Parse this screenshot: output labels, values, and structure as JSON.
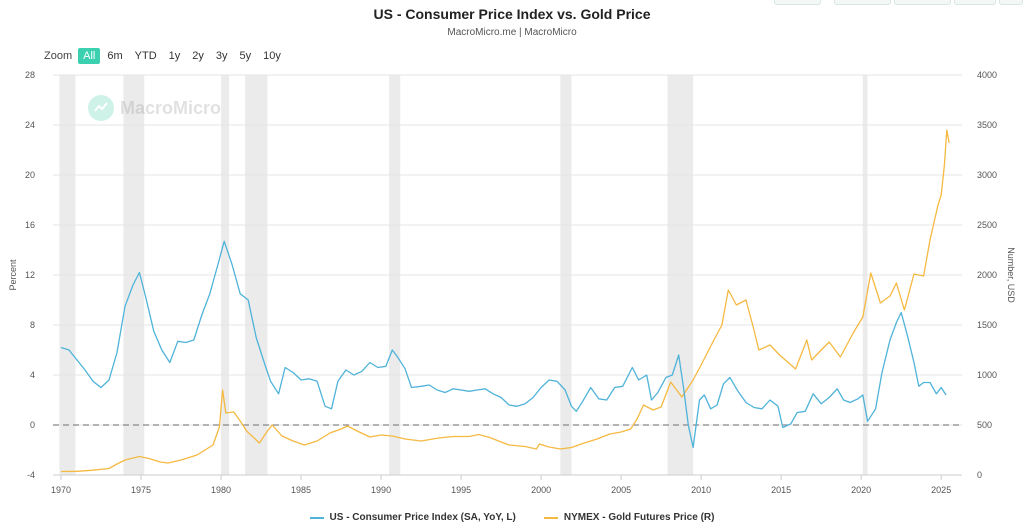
{
  "page": {
    "title": "US - Consumer Price Index vs. Gold Price",
    "subtitle": "MacroMicro.me | MacroMicro",
    "watermark": "MacroMicro"
  },
  "zoom": {
    "label": "Zoom",
    "options": [
      "All",
      "6m",
      "YTD",
      "1y",
      "2y",
      "3y",
      "5y",
      "10y"
    ],
    "selected": "All"
  },
  "chart_data": {
    "type": "line",
    "title": "US - Consumer Price Index vs. Gold Price",
    "xlim": [
      1969.5,
      2026.3
    ],
    "x_ticks": [
      1970,
      1975,
      1980,
      1985,
      1990,
      1995,
      2000,
      2005,
      2010,
      2015,
      2020,
      2025
    ],
    "y_left": {
      "label": "Percent",
      "min": -4,
      "max": 28,
      "ticks": [
        -4,
        0,
        4,
        8,
        12,
        16,
        20,
        24,
        28
      ]
    },
    "y_right": {
      "label": "Number, USD",
      "min": 0,
      "max": 4000,
      "ticks": [
        0,
        500,
        1000,
        1500,
        2000,
        2500,
        3000,
        3500,
        4000
      ]
    },
    "zero_line": 0,
    "recessions": [
      [
        1969.9,
        1970.9
      ],
      [
        1973.9,
        1975.2
      ],
      [
        1980.0,
        1980.5
      ],
      [
        1981.5,
        1982.9
      ],
      [
        1990.5,
        1991.2
      ],
      [
        2001.2,
        2001.9
      ],
      [
        2007.9,
        2009.5
      ],
      [
        2020.1,
        2020.4
      ]
    ],
    "series": [
      {
        "name": "US - Consumer Price Index (SA, YoY, L)",
        "axis": "left",
        "color": "#4fb3d9",
        "points": [
          [
            1970.0,
            6.2
          ],
          [
            1970.5,
            6.0
          ],
          [
            1971.0,
            5.2
          ],
          [
            1971.5,
            4.4
          ],
          [
            1972.0,
            3.5
          ],
          [
            1972.5,
            3.0
          ],
          [
            1973.0,
            3.6
          ],
          [
            1973.5,
            5.8
          ],
          [
            1974.0,
            9.5
          ],
          [
            1974.5,
            11.2
          ],
          [
            1974.9,
            12.2
          ],
          [
            1975.3,
            10.2
          ],
          [
            1975.8,
            7.5
          ],
          [
            1976.3,
            6.0
          ],
          [
            1976.8,
            5.0
          ],
          [
            1977.3,
            6.7
          ],
          [
            1977.8,
            6.6
          ],
          [
            1978.3,
            6.8
          ],
          [
            1978.8,
            8.8
          ],
          [
            1979.3,
            10.5
          ],
          [
            1979.8,
            12.8
          ],
          [
            1980.2,
            14.7
          ],
          [
            1980.7,
            12.8
          ],
          [
            1981.2,
            10.5
          ],
          [
            1981.7,
            10.0
          ],
          [
            1982.2,
            7.0
          ],
          [
            1982.7,
            5.0
          ],
          [
            1983.1,
            3.5
          ],
          [
            1983.6,
            2.5
          ],
          [
            1984.0,
            4.6
          ],
          [
            1984.5,
            4.2
          ],
          [
            1985.0,
            3.6
          ],
          [
            1985.5,
            3.7
          ],
          [
            1986.0,
            3.5
          ],
          [
            1986.5,
            1.5
          ],
          [
            1986.9,
            1.3
          ],
          [
            1987.3,
            3.5
          ],
          [
            1987.8,
            4.4
          ],
          [
            1988.3,
            4.0
          ],
          [
            1988.8,
            4.3
          ],
          [
            1989.3,
            5.0
          ],
          [
            1989.8,
            4.6
          ],
          [
            1990.3,
            4.7
          ],
          [
            1990.7,
            6.0
          ],
          [
            1991.0,
            5.5
          ],
          [
            1991.5,
            4.5
          ],
          [
            1991.9,
            3.0
          ],
          [
            1992.5,
            3.1
          ],
          [
            1993.0,
            3.2
          ],
          [
            1993.5,
            2.8
          ],
          [
            1994.0,
            2.6
          ],
          [
            1994.5,
            2.9
          ],
          [
            1995.0,
            2.8
          ],
          [
            1995.5,
            2.7
          ],
          [
            1996.0,
            2.8
          ],
          [
            1996.5,
            2.9
          ],
          [
            1997.0,
            2.5
          ],
          [
            1997.5,
            2.2
          ],
          [
            1998.0,
            1.6
          ],
          [
            1998.5,
            1.5
          ],
          [
            1999.0,
            1.7
          ],
          [
            1999.5,
            2.2
          ],
          [
            2000.0,
            3.0
          ],
          [
            2000.5,
            3.6
          ],
          [
            2001.0,
            3.5
          ],
          [
            2001.5,
            2.8
          ],
          [
            2001.9,
            1.5
          ],
          [
            2002.2,
            1.1
          ],
          [
            2002.6,
            1.9
          ],
          [
            2003.1,
            3.0
          ],
          [
            2003.6,
            2.1
          ],
          [
            2004.1,
            2.0
          ],
          [
            2004.6,
            3.0
          ],
          [
            2005.1,
            3.1
          ],
          [
            2005.7,
            4.6
          ],
          [
            2006.1,
            3.6
          ],
          [
            2006.6,
            4.0
          ],
          [
            2006.9,
            2.0
          ],
          [
            2007.3,
            2.6
          ],
          [
            2007.8,
            3.8
          ],
          [
            2008.2,
            4.0
          ],
          [
            2008.6,
            5.6
          ],
          [
            2008.9,
            3.0
          ],
          [
            2009.2,
            0.0
          ],
          [
            2009.5,
            -1.8
          ],
          [
            2009.9,
            2.0
          ],
          [
            2010.2,
            2.4
          ],
          [
            2010.6,
            1.3
          ],
          [
            2011.0,
            1.6
          ],
          [
            2011.4,
            3.3
          ],
          [
            2011.8,
            3.8
          ],
          [
            2012.3,
            2.7
          ],
          [
            2012.8,
            1.8
          ],
          [
            2013.3,
            1.4
          ],
          [
            2013.8,
            1.3
          ],
          [
            2014.3,
            2.0
          ],
          [
            2014.8,
            1.5
          ],
          [
            2015.1,
            -0.2
          ],
          [
            2015.6,
            0.1
          ],
          [
            2016.0,
            1.0
          ],
          [
            2016.5,
            1.1
          ],
          [
            2017.0,
            2.5
          ],
          [
            2017.5,
            1.7
          ],
          [
            2018.0,
            2.2
          ],
          [
            2018.5,
            2.9
          ],
          [
            2018.9,
            2.0
          ],
          [
            2019.3,
            1.8
          ],
          [
            2019.8,
            2.1
          ],
          [
            2020.1,
            2.4
          ],
          [
            2020.4,
            0.3
          ],
          [
            2020.9,
            1.3
          ],
          [
            2021.3,
            4.2
          ],
          [
            2021.8,
            6.8
          ],
          [
            2022.2,
            8.2
          ],
          [
            2022.5,
            9.0
          ],
          [
            2022.9,
            7.1
          ],
          [
            2023.3,
            5.0
          ],
          [
            2023.6,
            3.1
          ],
          [
            2023.9,
            3.4
          ],
          [
            2024.3,
            3.4
          ],
          [
            2024.7,
            2.5
          ],
          [
            2025.0,
            3.0
          ],
          [
            2025.3,
            2.4
          ]
        ]
      },
      {
        "name": "NYMEX - Gold Futures Price (R)",
        "axis": "right",
        "color": "#f5b942",
        "points": [
          [
            1970.0,
            35
          ],
          [
            1971.0,
            37
          ],
          [
            1972.0,
            48
          ],
          [
            1973.0,
            65
          ],
          [
            1973.5,
            110
          ],
          [
            1974.0,
            150
          ],
          [
            1974.9,
            185
          ],
          [
            1975.5,
            165
          ],
          [
            1976.2,
            130
          ],
          [
            1976.7,
            120
          ],
          [
            1977.5,
            150
          ],
          [
            1978.5,
            200
          ],
          [
            1979.5,
            300
          ],
          [
            1979.9,
            480
          ],
          [
            1980.1,
            850
          ],
          [
            1980.3,
            620
          ],
          [
            1980.8,
            630
          ],
          [
            1981.2,
            540
          ],
          [
            1981.6,
            440
          ],
          [
            1982.4,
            320
          ],
          [
            1982.9,
            440
          ],
          [
            1983.2,
            500
          ],
          [
            1983.8,
            390
          ],
          [
            1984.5,
            340
          ],
          [
            1985.2,
            300
          ],
          [
            1986.0,
            340
          ],
          [
            1986.8,
            420
          ],
          [
            1987.5,
            460
          ],
          [
            1987.9,
            490
          ],
          [
            1988.5,
            440
          ],
          [
            1989.3,
            380
          ],
          [
            1990.0,
            400
          ],
          [
            1990.7,
            390
          ],
          [
            1991.5,
            360
          ],
          [
            1992.5,
            340
          ],
          [
            1993.6,
            370
          ],
          [
            1994.5,
            385
          ],
          [
            1995.5,
            385
          ],
          [
            1996.1,
            405
          ],
          [
            1996.8,
            375
          ],
          [
            1997.5,
            330
          ],
          [
            1998.0,
            300
          ],
          [
            1999.0,
            285
          ],
          [
            1999.7,
            260
          ],
          [
            1999.9,
            310
          ],
          [
            2000.5,
            280
          ],
          [
            2001.2,
            260
          ],
          [
            2001.9,
            275
          ],
          [
            2002.6,
            315
          ],
          [
            2003.5,
            360
          ],
          [
            2004.3,
            410
          ],
          [
            2005.0,
            430
          ],
          [
            2005.6,
            460
          ],
          [
            2006.0,
            560
          ],
          [
            2006.4,
            700
          ],
          [
            2007.0,
            650
          ],
          [
            2007.5,
            680
          ],
          [
            2008.1,
            930
          ],
          [
            2008.8,
            780
          ],
          [
            2009.5,
            950
          ],
          [
            2010.0,
            1100
          ],
          [
            2010.8,
            1350
          ],
          [
            2011.3,
            1500
          ],
          [
            2011.7,
            1850
          ],
          [
            2012.2,
            1700
          ],
          [
            2012.8,
            1750
          ],
          [
            2013.3,
            1450
          ],
          [
            2013.6,
            1250
          ],
          [
            2014.3,
            1300
          ],
          [
            2014.9,
            1200
          ],
          [
            2015.9,
            1060
          ],
          [
            2016.6,
            1350
          ],
          [
            2016.9,
            1150
          ],
          [
            2017.5,
            1250
          ],
          [
            2018.0,
            1330
          ],
          [
            2018.7,
            1180
          ],
          [
            2019.5,
            1420
          ],
          [
            2020.1,
            1580
          ],
          [
            2020.6,
            2020
          ],
          [
            2021.2,
            1720
          ],
          [
            2021.8,
            1790
          ],
          [
            2022.2,
            1920
          ],
          [
            2022.7,
            1650
          ],
          [
            2023.3,
            2010
          ],
          [
            2023.9,
            1990
          ],
          [
            2024.3,
            2350
          ],
          [
            2024.8,
            2700
          ],
          [
            2025.0,
            2800
          ],
          [
            2025.2,
            3100
          ],
          [
            2025.35,
            3450
          ],
          [
            2025.5,
            3320
          ]
        ]
      }
    ]
  },
  "legend": [
    {
      "label": "US - Consumer Price Index (SA, YoY, L)",
      "color": "#4fb3d9"
    },
    {
      "label": "NYMEX - Gold Futures Price (R)",
      "color": "#f5b942"
    }
  ]
}
